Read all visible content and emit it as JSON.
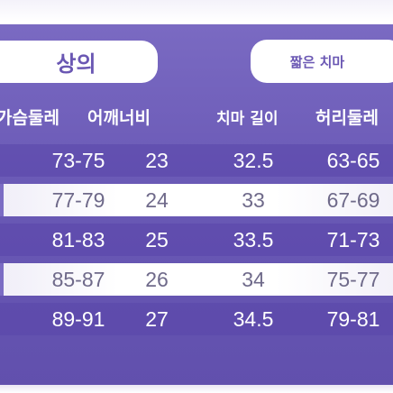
{
  "tabs": {
    "top_label": "상의",
    "skirt_label": "짧은 치마"
  },
  "headers": {
    "chest": "가슴둘레",
    "shoulder": "어깨너비",
    "skirt_length": "치마 길이",
    "waist": "허리둘레"
  },
  "rows": [
    {
      "chest": "73-75",
      "shoulder": "23",
      "skirt_length": "32.5",
      "waist": "63-65"
    },
    {
      "chest": "77-79",
      "shoulder": "24",
      "skirt_length": "33",
      "waist": "67-69"
    },
    {
      "chest": "81-83",
      "shoulder": "25",
      "skirt_length": "33.5",
      "waist": "71-73"
    },
    {
      "chest": "85-87",
      "shoulder": "26",
      "skirt_length": "34",
      "waist": "75-77"
    },
    {
      "chest": "89-91",
      "shoulder": "27",
      "skirt_length": "34.5",
      "waist": "79-81"
    }
  ],
  "colors": {
    "panel": "#6a59b6",
    "tab_text": "#6a57b3",
    "light_row_text": "#6f6a8a"
  }
}
